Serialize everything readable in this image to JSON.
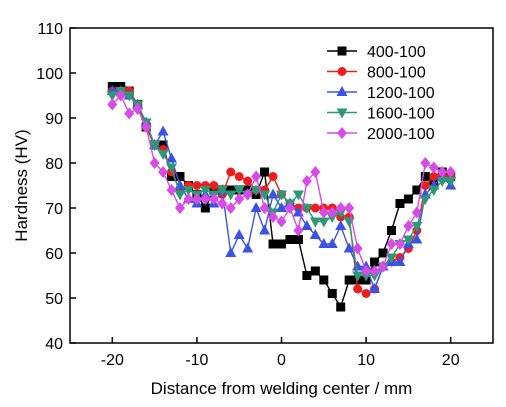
{
  "chart_data": {
    "type": "line",
    "xlabel": "Distance from welding center / mm",
    "ylabel": "Hardness (HV)",
    "xlim": [
      -25,
      25
    ],
    "ylim": [
      40,
      110
    ],
    "xticks": [
      -20,
      -10,
      0,
      10,
      20
    ],
    "xtick_labels": [
      "-20",
      "-10",
      "0",
      "10",
      "20"
    ],
    "yticks": [
      40,
      50,
      60,
      70,
      80,
      90,
      100,
      110
    ],
    "ytick_labels": [
      "40",
      "50",
      "60",
      "70",
      "80",
      "90",
      "100",
      "110"
    ],
    "grid": false,
    "legend_position": "top-right",
    "series": [
      {
        "name": "400-100",
        "color": "#000000",
        "marker": "square",
        "x": [
          -20,
          -19,
          -18,
          -17,
          -16,
          -15,
          -14,
          -13,
          -12,
          -11,
          -10,
          -9,
          -8,
          -7,
          -6,
          -5,
          -4,
          -3,
          -2,
          -1,
          0,
          1,
          2,
          3,
          4,
          5,
          6,
          7,
          8,
          9,
          10,
          11,
          12,
          13,
          14,
          15,
          16,
          17,
          18,
          19,
          20
        ],
        "y": [
          97,
          97,
          96,
          93,
          88,
          84,
          84,
          77,
          77,
          75,
          73,
          70,
          74,
          74,
          74,
          74,
          74,
          73,
          78,
          62,
          62,
          63,
          63,
          55,
          56,
          54,
          51,
          48,
          54,
          54,
          54,
          58,
          60,
          65,
          71,
          72,
          74,
          77,
          76,
          78,
          77
        ]
      },
      {
        "name": "800-100",
        "color": "#ee1c1c",
        "marker": "circle",
        "x": [
          -20,
          -19,
          -18,
          -17,
          -16,
          -15,
          -14,
          -13,
          -12,
          -11,
          -10,
          -9,
          -8,
          -7,
          -6,
          -5,
          -4,
          -3,
          -2,
          -1,
          0,
          1,
          2,
          3,
          4,
          5,
          6,
          7,
          8,
          9,
          10,
          11,
          12,
          13,
          14,
          15,
          16,
          17,
          18,
          19,
          20
        ],
        "y": [
          96,
          96,
          96,
          93,
          88,
          84,
          83,
          78,
          74,
          75,
          75,
          75,
          75,
          73,
          78,
          77,
          76,
          74,
          74,
          77,
          73,
          71,
          70,
          70,
          70,
          70,
          70,
          68,
          68,
          52,
          51,
          52,
          57,
          58,
          59,
          61,
          65,
          75,
          77,
          77,
          77
        ]
      },
      {
        "name": "1200-100",
        "color": "#3a53e4",
        "marker": "triangle-up",
        "x": [
          -20,
          -19,
          -18,
          -17,
          -16,
          -15,
          -14,
          -13,
          -12,
          -11,
          -10,
          -9,
          -8,
          -7,
          -6,
          -5,
          -4,
          -3,
          -2,
          -1,
          0,
          1,
          2,
          3,
          4,
          5,
          6,
          7,
          8,
          9,
          10,
          11,
          12,
          13,
          14,
          15,
          16,
          17,
          18,
          19,
          20
        ],
        "y": [
          96,
          96,
          95,
          93,
          89,
          84,
          87,
          81,
          75,
          72,
          71,
          73,
          71,
          74,
          60,
          64,
          61,
          70,
          65,
          73,
          70,
          71,
          69,
          66,
          64,
          62,
          62,
          66,
          61,
          57,
          57,
          52,
          57,
          58,
          58,
          62,
          63,
          73,
          75,
          77,
          75
        ]
      },
      {
        "name": "1600-100",
        "color": "#2b9a74",
        "marker": "triangle-down",
        "x": [
          -20,
          -19,
          -18,
          -17,
          -16,
          -15,
          -14,
          -13,
          -12,
          -11,
          -10,
          -9,
          -8,
          -7,
          -6,
          -5,
          -4,
          -3,
          -2,
          -1,
          0,
          1,
          2,
          3,
          4,
          5,
          6,
          7,
          8,
          9,
          10,
          11,
          12,
          13,
          14,
          15,
          16,
          17,
          18,
          19,
          20
        ],
        "y": [
          95,
          96,
          95,
          93,
          89,
          84,
          82,
          79,
          73,
          74,
          73,
          74,
          73,
          74,
          73,
          74,
          73,
          74,
          73,
          69,
          73,
          71,
          73,
          70,
          67,
          67,
          68,
          69,
          67,
          55,
          55,
          55,
          57,
          59,
          62,
          63,
          66,
          72,
          74,
          76,
          76
        ]
      },
      {
        "name": "2000-100",
        "color": "#d84be6",
        "marker": "diamond",
        "x": [
          -20,
          -19,
          -18,
          -17,
          -16,
          -15,
          -14,
          -13,
          -12,
          -11,
          -10,
          -9,
          -8,
          -7,
          -6,
          -5,
          -4,
          -3,
          -2,
          -1,
          0,
          1,
          2,
          3,
          4,
          5,
          6,
          7,
          8,
          9,
          10,
          11,
          12,
          13,
          14,
          15,
          16,
          17,
          18,
          19,
          20
        ],
        "y": [
          93,
          95,
          91,
          92,
          88,
          80,
          78,
          74,
          70,
          72,
          72,
          72,
          72,
          71,
          70,
          72,
          73,
          77,
          70,
          68,
          67,
          70,
          65,
          76,
          78,
          69,
          69,
          70,
          70,
          61,
          56,
          56,
          57,
          62,
          62,
          66,
          69,
          80,
          79,
          78,
          78
        ]
      }
    ]
  }
}
